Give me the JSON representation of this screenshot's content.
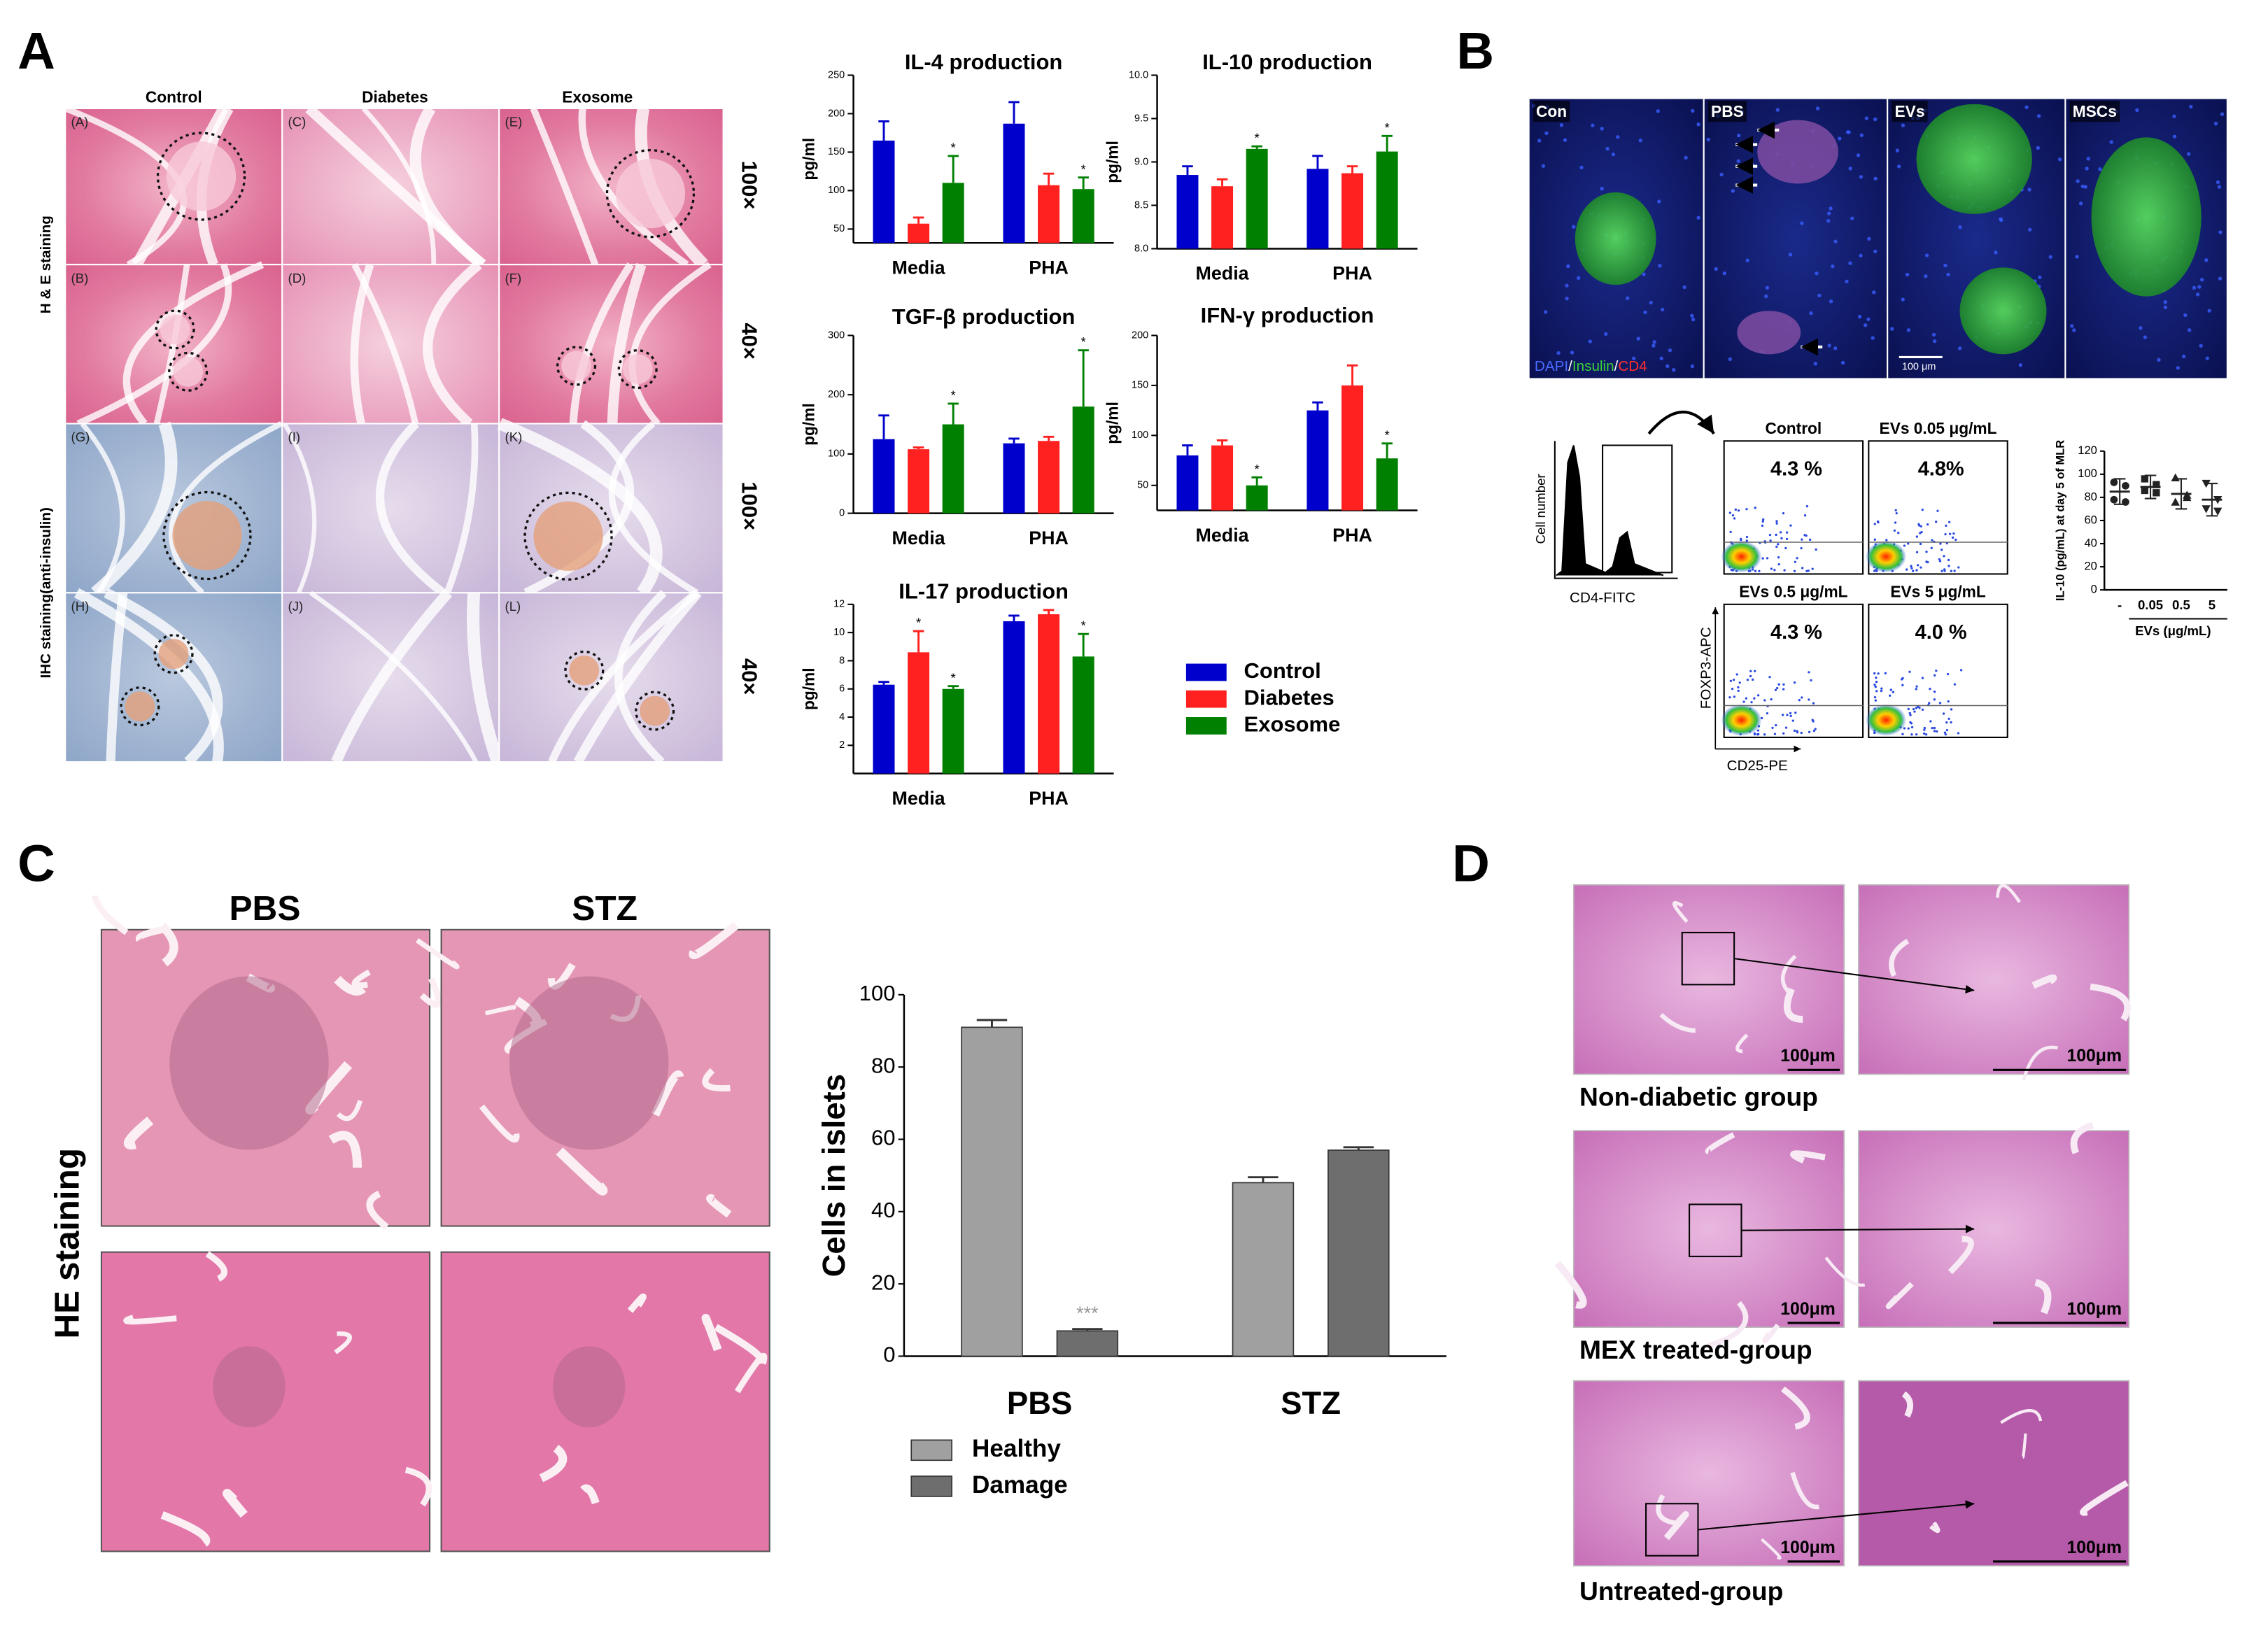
{
  "panel_labels": [
    "A",
    "B",
    "C",
    "D"
  ],
  "panel_a": {
    "columns": [
      "Control",
      "Diabetes",
      "Exosome"
    ],
    "stains": [
      "H & E staining",
      "IHC staining(anti-insulin)"
    ],
    "magnifications": [
      "100×",
      "40×",
      "100×",
      "40×"
    ],
    "image_labels": [
      [
        "(A)",
        "(C)",
        "(E)"
      ],
      [
        "(B)",
        "(D)",
        "(F)"
      ],
      [
        "(G)",
        "(I)",
        "(K)"
      ],
      [
        "(H)",
        "(J)",
        "(L)"
      ]
    ]
  },
  "panel_b": {
    "images": [
      "Con",
      "PBS",
      "EVs",
      "MSCs"
    ],
    "stain": [
      {
        "text": "DAPI",
        "color": "#4a6cff"
      },
      {
        "text": "/",
        "color": "#ffffff"
      },
      {
        "text": "Insulin",
        "color": "#3ad13a"
      },
      {
        "text": "/",
        "color": "#ffffff"
      },
      {
        "text": "CD4",
        "color": "#ff3030"
      }
    ],
    "scale_bar": "100 μm",
    "histogram_x": "CD4-FITC",
    "histogram_y": "Cell number",
    "flow_x": "CD25-PE",
    "flow_y": "FOXP3-APC",
    "flow_plots": [
      {
        "title": "Control",
        "percent": "4.3 %"
      },
      {
        "title": "EVs 0.05 μg/mL",
        "percent": "4.8%"
      },
      {
        "title": "EVs 0.5 μg/mL",
        "percent": "4.3 %"
      },
      {
        "title": "EVs 5 μg/mL",
        "percent": "4.0 %"
      }
    ]
  },
  "panel_c": {
    "conditions": [
      "PBS",
      "STZ"
    ],
    "stain": "HE staining"
  },
  "panel_d": {
    "groups": [
      "Non-diabetic group",
      "MEX treated-group",
      "Untreated-group"
    ],
    "scale_bar": "100μm"
  },
  "chart_data": [
    {
      "type": "bar",
      "title": "IL-4 production",
      "ylabel": "pg/ml",
      "categories": [
        "Media",
        "PHA"
      ],
      "ylim": [
        32,
        250
      ],
      "yticks": [
        50,
        100,
        150,
        200,
        250
      ],
      "series": [
        {
          "name": "Control",
          "color": "#0000cc",
          "values": [
            165,
            187
          ],
          "errors": [
            25,
            28
          ],
          "significance": [
            null,
            null
          ]
        },
        {
          "name": "Diabetes",
          "color": "#ff2020",
          "values": [
            57,
            107
          ],
          "errors": [
            8,
            15
          ],
          "significance": [
            null,
            null
          ]
        },
        {
          "name": "Exosome",
          "color": "#008000",
          "values": [
            110,
            102
          ],
          "errors": [
            35,
            15
          ],
          "significance": [
            "*",
            "*"
          ]
        }
      ]
    },
    {
      "type": "bar",
      "title": "IL-10 production",
      "ylabel": "pg/ml",
      "categories": [
        "Media",
        "PHA"
      ],
      "ylim": [
        8,
        10
      ],
      "yticks": [
        {
          "value": 8,
          "label": "8.0"
        },
        8.5,
        {
          "value": 9,
          "label": "9.0"
        },
        9.5,
        {
          "value": 10,
          "label": "10.0"
        }
      ],
      "series": [
        {
          "color": "#0000cc",
          "values": [
            8.85,
            8.92
          ],
          "errors": [
            0.1,
            0.15
          ],
          "significance": [
            null,
            null
          ]
        },
        {
          "color": "#ff2020",
          "values": [
            8.72,
            8.87
          ],
          "errors": [
            0.08,
            0.08
          ],
          "significance": [
            null,
            null
          ]
        },
        {
          "color": "#008000",
          "values": [
            9.15,
            9.12
          ],
          "errors": [
            0.03,
            0.18
          ],
          "significance": [
            "*",
            "*"
          ]
        }
      ]
    },
    {
      "type": "bar",
      "title": "TGF-β production",
      "ylabel": "pg/ml",
      "categories": [
        "Media",
        "PHA"
      ],
      "ylim": [
        0,
        300
      ],
      "yticks": [
        0,
        100,
        200,
        300
      ],
      "series": [
        {
          "color": "#0000cc",
          "values": [
            125,
            118
          ],
          "errors": [
            40,
            8
          ],
          "significance": [
            null,
            null
          ]
        },
        {
          "color": "#ff2020",
          "values": [
            108,
            122
          ],
          "errors": [
            3,
            7
          ],
          "significance": [
            null,
            null
          ]
        },
        {
          "color": "#008000",
          "values": [
            150,
            180
          ],
          "errors": [
            35,
            95
          ],
          "significance": [
            "*",
            "*"
          ]
        }
      ]
    },
    {
      "type": "bar",
      "title": "IFN-γ production",
      "ylabel": "pg/ml",
      "categories": [
        "Media",
        "PHA"
      ],
      "ylim": [
        25,
        200
      ],
      "yticks": [
        50,
        100,
        150,
        200
      ],
      "series": [
        {
          "color": "#0000cc",
          "values": [
            80,
            125
          ],
          "errors": [
            10,
            8
          ],
          "significance": [
            null,
            null
          ]
        },
        {
          "color": "#ff2020",
          "values": [
            90,
            150
          ],
          "errors": [
            5,
            20
          ],
          "significance": [
            null,
            null
          ]
        },
        {
          "color": "#008000",
          "values": [
            50,
            77
          ],
          "errors": [
            8,
            15
          ],
          "significance": [
            "*",
            "*"
          ]
        }
      ]
    },
    {
      "type": "bar",
      "title": "IL-17 production",
      "ylabel": "pg/ml",
      "categories": [
        "Media",
        "PHA"
      ],
      "ylim": [
        0,
        12
      ],
      "yticks": [
        2,
        4,
        6,
        8,
        10,
        12
      ],
      "series": [
        {
          "color": "#0000cc",
          "values": [
            6.3,
            10.8
          ],
          "errors": [
            0.2,
            0.4
          ],
          "significance": [
            null,
            null
          ]
        },
        {
          "color": "#ff2020",
          "values": [
            8.6,
            11.3
          ],
          "errors": [
            1.5,
            0.3
          ],
          "significance": [
            "*",
            null
          ]
        },
        {
          "color": "#008000",
          "values": [
            6,
            8.3
          ],
          "errors": [
            0.2,
            1.6
          ],
          "significance": [
            "*",
            "*"
          ]
        }
      ]
    },
    {
      "type": "dot",
      "ylabel": "IL-10 (pg/mL) at day 5 of MLR",
      "xlabel": "EVs (μg/mL)",
      "categories": [
        "-",
        "0.05",
        "0.5",
        "5"
      ],
      "ylim": [
        0,
        120
      ],
      "yticks": [
        0,
        20,
        40,
        60,
        80,
        100,
        120
      ],
      "means": [
        85,
        89,
        83,
        78
      ],
      "errors": [
        11,
        10,
        13,
        14
      ],
      "points": [
        [
          93,
          90,
          78,
          76
        ],
        [
          96,
          91,
          86,
          84
        ],
        [
          97,
          82,
          76,
          80
        ],
        [
          92,
          78,
          70,
          68
        ]
      ],
      "markers": [
        "circle",
        "square",
        "triangle-up",
        "triangle-down"
      ],
      "color": "#222222"
    },
    {
      "type": "bar",
      "ylabel": "Cells in islets",
      "categories": [
        "PBS",
        "STZ"
      ],
      "ylim": [
        0,
        100
      ],
      "yticks": [
        0,
        20,
        40,
        60,
        80,
        100
      ],
      "series": [
        {
          "name": "Healthy",
          "color": "#a0a0a0",
          "values": [
            91,
            48
          ],
          "errors": [
            2,
            1.5
          ],
          "significance": [
            null,
            null
          ]
        },
        {
          "name": "Damage",
          "color": "#6e6e6e",
          "values": [
            7,
            57
          ],
          "errors": [
            0.5,
            0.8
          ],
          "significance": [
            "***",
            null
          ]
        }
      ]
    }
  ]
}
